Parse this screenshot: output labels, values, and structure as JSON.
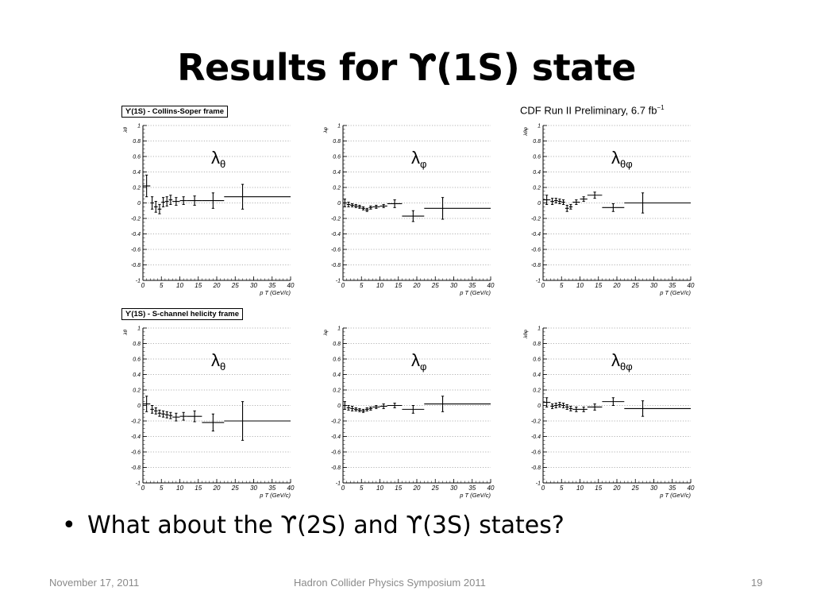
{
  "slide": {
    "title": "Results for ϒ(1S) state",
    "frame_labels": [
      "ϒ(1S) - Collins-Soper frame",
      "ϒ(1S) - S-channel helicity frame"
    ],
    "experiment_label": "CDF Run II Preliminary, 6.7 fb",
    "experiment_label_sup": "−1",
    "bullet": "What about the ϒ(2S) and ϒ(3S) states?",
    "footer": {
      "date": "November 17, 2011",
      "event": "Hadron Collider Physics Symposium  2011",
      "page": "19"
    }
  },
  "chart_data": [
    {
      "type": "scatter",
      "frame": "Collins-Soper",
      "parameter": "λθ",
      "legend_base": "λ",
      "legend_sub": "θ",
      "ylabel": "λθ",
      "xlabel": "p T (GeV/c)",
      "xlim": [
        0,
        40
      ],
      "ylim": [
        -1,
        1
      ],
      "xticks": [
        0,
        5,
        10,
        15,
        20,
        25,
        30,
        35,
        40
      ],
      "yticks": [
        -1,
        -0.8,
        -0.6,
        -0.4,
        -0.2,
        0,
        0.2,
        0.4,
        0.6,
        0.8,
        1
      ],
      "grid": "horizontal dotted",
      "points": [
        {
          "x": 1.0,
          "xlo": 0,
          "xhi": 2,
          "y": 0.22,
          "err": 0.14
        },
        {
          "x": 2.5,
          "xlo": 2,
          "xhi": 3,
          "y": 0.0,
          "err": 0.08
        },
        {
          "x": 3.5,
          "xlo": 3,
          "xhi": 4,
          "y": -0.05,
          "err": 0.07
        },
        {
          "x": 4.5,
          "xlo": 4,
          "xhi": 5,
          "y": -0.08,
          "err": 0.06
        },
        {
          "x": 5.5,
          "xlo": 5,
          "xhi": 6,
          "y": 0.01,
          "err": 0.06
        },
        {
          "x": 6.5,
          "xlo": 6,
          "xhi": 7,
          "y": 0.02,
          "err": 0.06
        },
        {
          "x": 7.5,
          "xlo": 7,
          "xhi": 8,
          "y": 0.04,
          "err": 0.06
        },
        {
          "x": 9.0,
          "xlo": 8,
          "xhi": 10,
          "y": 0.02,
          "err": 0.05
        },
        {
          "x": 11.0,
          "xlo": 10,
          "xhi": 12,
          "y": 0.03,
          "err": 0.05
        },
        {
          "x": 14.0,
          "xlo": 12,
          "xhi": 16,
          "y": 0.03,
          "err": 0.06
        },
        {
          "x": 19.0,
          "xlo": 16,
          "xhi": 22,
          "y": 0.03,
          "err": 0.1
        },
        {
          "x": 27.0,
          "xlo": 22,
          "xhi": 40,
          "y": 0.08,
          "err": 0.16
        }
      ]
    },
    {
      "type": "scatter",
      "frame": "Collins-Soper",
      "parameter": "λφ",
      "legend_base": "λ",
      "legend_sub": "φ",
      "ylabel": "λφ",
      "xlabel": "p T (GeV/c)",
      "xlim": [
        0,
        40
      ],
      "ylim": [
        -1,
        1
      ],
      "xticks": [
        0,
        5,
        10,
        15,
        20,
        25,
        30,
        35,
        40
      ],
      "yticks": [
        -1,
        -0.8,
        -0.6,
        -0.4,
        -0.2,
        0,
        0.2,
        0.4,
        0.6,
        0.8,
        1
      ],
      "grid": "horizontal dotted",
      "points": [
        {
          "x": 0.5,
          "xlo": 0,
          "xhi": 1,
          "y": 0.0,
          "err": 0.05
        },
        {
          "x": 1.5,
          "xlo": 1,
          "xhi": 2,
          "y": -0.02,
          "err": 0.03
        },
        {
          "x": 2.5,
          "xlo": 2,
          "xhi": 3,
          "y": -0.03,
          "err": 0.02
        },
        {
          "x": 3.5,
          "xlo": 3,
          "xhi": 4,
          "y": -0.04,
          "err": 0.02
        },
        {
          "x": 4.5,
          "xlo": 4,
          "xhi": 5,
          "y": -0.05,
          "err": 0.02
        },
        {
          "x": 5.5,
          "xlo": 5,
          "xhi": 6,
          "y": -0.07,
          "err": 0.02
        },
        {
          "x": 6.5,
          "xlo": 6,
          "xhi": 7,
          "y": -0.09,
          "err": 0.02
        },
        {
          "x": 7.5,
          "xlo": 7,
          "xhi": 8,
          "y": -0.06,
          "err": 0.02
        },
        {
          "x": 9.0,
          "xlo": 8,
          "xhi": 10,
          "y": -0.05,
          "err": 0.02
        },
        {
          "x": 11.0,
          "xlo": 10,
          "xhi": 12,
          "y": -0.04,
          "err": 0.02
        },
        {
          "x": 14.0,
          "xlo": 12,
          "xhi": 16,
          "y": -0.01,
          "err": 0.05
        },
        {
          "x": 19.0,
          "xlo": 16,
          "xhi": 22,
          "y": -0.17,
          "err": 0.07
        },
        {
          "x": 27.0,
          "xlo": 22,
          "xhi": 40,
          "y": -0.07,
          "err": 0.14
        }
      ]
    },
    {
      "type": "scatter",
      "frame": "Collins-Soper",
      "parameter": "λθφ",
      "legend_base": "λ",
      "legend_sub": "θφ",
      "ylabel": "λθφ",
      "xlabel": "p T (GeV/c)",
      "xlim": [
        0,
        40
      ],
      "ylim": [
        -1,
        1
      ],
      "xticks": [
        0,
        5,
        10,
        15,
        20,
        25,
        30,
        35,
        40
      ],
      "yticks": [
        -1,
        -0.8,
        -0.6,
        -0.4,
        -0.2,
        0,
        0.2,
        0.4,
        0.6,
        0.8,
        1
      ],
      "grid": "horizontal dotted",
      "points": [
        {
          "x": 1.0,
          "xlo": 0,
          "xhi": 2,
          "y": 0.04,
          "err": 0.06
        },
        {
          "x": 2.5,
          "xlo": 2,
          "xhi": 3,
          "y": 0.02,
          "err": 0.04
        },
        {
          "x": 3.5,
          "xlo": 3,
          "xhi": 4,
          "y": 0.03,
          "err": 0.03
        },
        {
          "x": 4.5,
          "xlo": 4,
          "xhi": 5,
          "y": 0.02,
          "err": 0.03
        },
        {
          "x": 5.5,
          "xlo": 5,
          "xhi": 6,
          "y": 0.01,
          "err": 0.03
        },
        {
          "x": 6.5,
          "xlo": 6,
          "xhi": 7,
          "y": -0.07,
          "err": 0.04
        },
        {
          "x": 7.5,
          "xlo": 7,
          "xhi": 8,
          "y": -0.05,
          "err": 0.03
        },
        {
          "x": 9.0,
          "xlo": 8,
          "xhi": 10,
          "y": 0.01,
          "err": 0.03
        },
        {
          "x": 11.0,
          "xlo": 10,
          "xhi": 12,
          "y": 0.05,
          "err": 0.03
        },
        {
          "x": 14.0,
          "xlo": 12,
          "xhi": 16,
          "y": 0.1,
          "err": 0.04
        },
        {
          "x": 19.0,
          "xlo": 16,
          "xhi": 22,
          "y": -0.06,
          "err": 0.05
        },
        {
          "x": 27.0,
          "xlo": 22,
          "xhi": 40,
          "y": 0.0,
          "err": 0.13
        }
      ]
    },
    {
      "type": "scatter",
      "frame": "S-channel helicity",
      "parameter": "λθ",
      "legend_base": "λ",
      "legend_sub": "θ",
      "ylabel": "λθ",
      "xlabel": "p T (GeV/c)",
      "xlim": [
        0,
        40
      ],
      "ylim": [
        -1,
        1
      ],
      "xticks": [
        0,
        5,
        10,
        15,
        20,
        25,
        30,
        35,
        40
      ],
      "yticks": [
        -1,
        -0.8,
        -0.6,
        -0.4,
        -0.2,
        0,
        0.2,
        0.4,
        0.6,
        0.8,
        1
      ],
      "grid": "horizontal dotted",
      "points": [
        {
          "x": 1.0,
          "xlo": 0,
          "xhi": 2,
          "y": 0.02,
          "err": 0.1
        },
        {
          "x": 2.5,
          "xlo": 2,
          "xhi": 3,
          "y": -0.05,
          "err": 0.05
        },
        {
          "x": 3.5,
          "xlo": 3,
          "xhi": 4,
          "y": -0.07,
          "err": 0.04
        },
        {
          "x": 4.5,
          "xlo": 4,
          "xhi": 5,
          "y": -0.1,
          "err": 0.04
        },
        {
          "x": 5.5,
          "xlo": 5,
          "xhi": 6,
          "y": -0.11,
          "err": 0.04
        },
        {
          "x": 6.5,
          "xlo": 6,
          "xhi": 7,
          "y": -0.12,
          "err": 0.04
        },
        {
          "x": 7.5,
          "xlo": 7,
          "xhi": 8,
          "y": -0.13,
          "err": 0.04
        },
        {
          "x": 9.0,
          "xlo": 8,
          "xhi": 10,
          "y": -0.15,
          "err": 0.05
        },
        {
          "x": 11.0,
          "xlo": 10,
          "xhi": 12,
          "y": -0.14,
          "err": 0.05
        },
        {
          "x": 14.0,
          "xlo": 12,
          "xhi": 16,
          "y": -0.14,
          "err": 0.07
        },
        {
          "x": 19.0,
          "xlo": 16,
          "xhi": 22,
          "y": -0.22,
          "err": 0.11
        },
        {
          "x": 27.0,
          "xlo": 22,
          "xhi": 40,
          "y": -0.2,
          "err": 0.25
        }
      ]
    },
    {
      "type": "scatter",
      "frame": "S-channel helicity",
      "parameter": "λφ",
      "legend_base": "λ",
      "legend_sub": "φ",
      "ylabel": "λφ",
      "xlabel": "p T (GeV/c)",
      "xlim": [
        0,
        40
      ],
      "ylim": [
        -1,
        1
      ],
      "xticks": [
        0,
        5,
        10,
        15,
        20,
        25,
        30,
        35,
        40
      ],
      "yticks": [
        -1,
        -0.8,
        -0.6,
        -0.4,
        -0.2,
        0,
        0.2,
        0.4,
        0.6,
        0.8,
        1
      ],
      "grid": "horizontal dotted",
      "points": [
        {
          "x": 0.5,
          "xlo": 0,
          "xhi": 1,
          "y": 0.0,
          "err": 0.05
        },
        {
          "x": 1.5,
          "xlo": 1,
          "xhi": 2,
          "y": -0.03,
          "err": 0.03
        },
        {
          "x": 2.5,
          "xlo": 2,
          "xhi": 3,
          "y": -0.04,
          "err": 0.03
        },
        {
          "x": 3.5,
          "xlo": 3,
          "xhi": 4,
          "y": -0.05,
          "err": 0.02
        },
        {
          "x": 4.5,
          "xlo": 4,
          "xhi": 5,
          "y": -0.06,
          "err": 0.02
        },
        {
          "x": 5.5,
          "xlo": 5,
          "xhi": 6,
          "y": -0.07,
          "err": 0.02
        },
        {
          "x": 6.5,
          "xlo": 6,
          "xhi": 7,
          "y": -0.05,
          "err": 0.02
        },
        {
          "x": 7.5,
          "xlo": 7,
          "xhi": 8,
          "y": -0.04,
          "err": 0.02
        },
        {
          "x": 9.0,
          "xlo": 8,
          "xhi": 10,
          "y": -0.02,
          "err": 0.02
        },
        {
          "x": 11.0,
          "xlo": 10,
          "xhi": 12,
          "y": -0.01,
          "err": 0.03
        },
        {
          "x": 14.0,
          "xlo": 12,
          "xhi": 16,
          "y": 0.0,
          "err": 0.03
        },
        {
          "x": 19.0,
          "xlo": 16,
          "xhi": 22,
          "y": -0.05,
          "err": 0.05
        },
        {
          "x": 27.0,
          "xlo": 22,
          "xhi": 40,
          "y": 0.02,
          "err": 0.1
        }
      ]
    },
    {
      "type": "scatter",
      "frame": "S-channel helicity",
      "parameter": "λθφ",
      "legend_base": "λ",
      "legend_sub": "θφ",
      "ylabel": "λθφ",
      "xlabel": "p T (GeV/c)",
      "xlim": [
        0,
        40
      ],
      "ylim": [
        -1,
        1
      ],
      "xticks": [
        0,
        5,
        10,
        15,
        20,
        25,
        30,
        35,
        40
      ],
      "yticks": [
        -1,
        -0.8,
        -0.6,
        -0.4,
        -0.2,
        0,
        0.2,
        0.4,
        0.6,
        0.8,
        1
      ],
      "grid": "horizontal dotted",
      "points": [
        {
          "x": 1.0,
          "xlo": 0,
          "xhi": 2,
          "y": 0.04,
          "err": 0.06
        },
        {
          "x": 2.5,
          "xlo": 2,
          "xhi": 3,
          "y": -0.01,
          "err": 0.03
        },
        {
          "x": 3.5,
          "xlo": 3,
          "xhi": 4,
          "y": 0.0,
          "err": 0.03
        },
        {
          "x": 4.5,
          "xlo": 4,
          "xhi": 5,
          "y": 0.01,
          "err": 0.03
        },
        {
          "x": 5.5,
          "xlo": 5,
          "xhi": 6,
          "y": 0.0,
          "err": 0.03
        },
        {
          "x": 6.5,
          "xlo": 6,
          "xhi": 7,
          "y": -0.02,
          "err": 0.03
        },
        {
          "x": 7.5,
          "xlo": 7,
          "xhi": 8,
          "y": -0.04,
          "err": 0.03
        },
        {
          "x": 9.0,
          "xlo": 8,
          "xhi": 10,
          "y": -0.05,
          "err": 0.03
        },
        {
          "x": 11.0,
          "xlo": 10,
          "xhi": 12,
          "y": -0.05,
          "err": 0.03
        },
        {
          "x": 14.0,
          "xlo": 12,
          "xhi": 16,
          "y": -0.02,
          "err": 0.04
        },
        {
          "x": 19.0,
          "xlo": 16,
          "xhi": 22,
          "y": 0.05,
          "err": 0.05
        },
        {
          "x": 27.0,
          "xlo": 22,
          "xhi": 40,
          "y": -0.04,
          "err": 0.1
        }
      ]
    }
  ]
}
